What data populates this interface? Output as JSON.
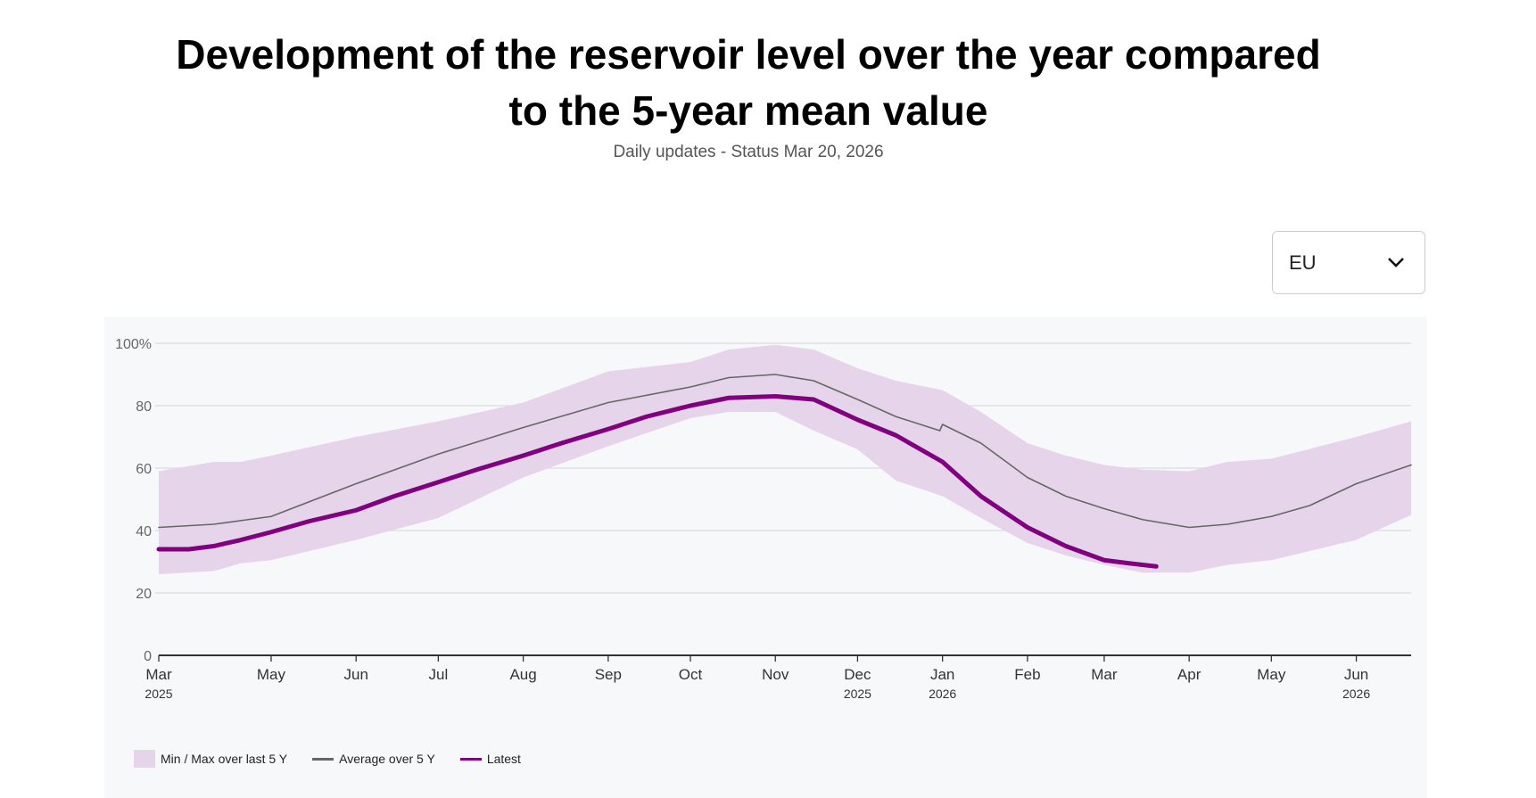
{
  "header": {
    "title_line1": "Development of the reservoir level over the year compared",
    "title_line2": "to the 5-year mean value",
    "subtitle": "Daily updates - Status Mar 20, 2026"
  },
  "region_select": {
    "selected": "EU",
    "icon": "chevron-down-icon"
  },
  "chart_data": {
    "type": "line",
    "title": "",
    "xlabel": "",
    "ylabel": "",
    "xlim": [
      "2025-03-21",
      "2026-06-21"
    ],
    "ylim": [
      0,
      100
    ],
    "yticks": [
      {
        "v": 0,
        "label": "0"
      },
      {
        "v": 20,
        "label": "20"
      },
      {
        "v": 40,
        "label": "40"
      },
      {
        "v": 60,
        "label": "60"
      },
      {
        "v": 80,
        "label": "80"
      },
      {
        "v": 100,
        "label": "100%"
      }
    ],
    "xticks": [
      {
        "date": "2025-03-21",
        "label": "Mar",
        "year": "2025"
      },
      {
        "date": "2025-05-01",
        "label": "May",
        "year": ""
      },
      {
        "date": "2025-06-01",
        "label": "Jun",
        "year": ""
      },
      {
        "date": "2025-07-01",
        "label": "Jul",
        "year": ""
      },
      {
        "date": "2025-08-01",
        "label": "Aug",
        "year": ""
      },
      {
        "date": "2025-09-01",
        "label": "Sep",
        "year": ""
      },
      {
        "date": "2025-10-01",
        "label": "Oct",
        "year": ""
      },
      {
        "date": "2025-11-01",
        "label": "Nov",
        "year": ""
      },
      {
        "date": "2025-12-01",
        "label": "Dec",
        "year": "2025"
      },
      {
        "date": "2026-01-01",
        "label": "Jan",
        "year": "2026"
      },
      {
        "date": "2026-02-01",
        "label": "Feb",
        "year": ""
      },
      {
        "date": "2026-03-01",
        "label": "Mar",
        "year": ""
      },
      {
        "date": "2026-04-01",
        "label": "Apr",
        "year": ""
      },
      {
        "date": "2026-05-01",
        "label": "May",
        "year": ""
      },
      {
        "date": "2026-06-01",
        "label": "Jun",
        "year": "2026"
      }
    ],
    "grid": true,
    "legend_position": "bottom-left",
    "colors": {
      "band": "#e6d5ea",
      "average": "#666666",
      "latest": "#800080",
      "background": "#f7f8fa"
    },
    "band": {
      "name": "Min / Max over last 5 Y",
      "points": [
        [
          "2025-03-21",
          26,
          59
        ],
        [
          "2025-04-10",
          27,
          62
        ],
        [
          "2025-04-20",
          29.5,
          62
        ],
        [
          "2025-05-01",
          30.5,
          64
        ],
        [
          "2025-06-01",
          37,
          70
        ],
        [
          "2025-07-01",
          44,
          75
        ],
        [
          "2025-08-01",
          57,
          81
        ],
        [
          "2025-09-01",
          67,
          91
        ],
        [
          "2025-10-01",
          76,
          94
        ],
        [
          "2025-10-15",
          78,
          98
        ],
        [
          "2025-11-01",
          78,
          99.5
        ],
        [
          "2025-11-15",
          72,
          98
        ],
        [
          "2025-12-01",
          66,
          92
        ],
        [
          "2025-12-15",
          56,
          88
        ],
        [
          "2026-01-01",
          51,
          85
        ],
        [
          "2026-01-15",
          44,
          78
        ],
        [
          "2026-02-01",
          36,
          68
        ],
        [
          "2026-02-15",
          32,
          64
        ],
        [
          "2026-03-01",
          29,
          61
        ],
        [
          "2026-03-15",
          26.5,
          59.5
        ],
        [
          "2026-04-01",
          26.5,
          59
        ],
        [
          "2026-04-15",
          29,
          62
        ],
        [
          "2026-05-01",
          30.5,
          63
        ],
        [
          "2026-06-01",
          37,
          70
        ],
        [
          "2026-06-21",
          45,
          75
        ]
      ]
    },
    "series": [
      {
        "name": "Average over 5 Y",
        "points": [
          [
            "2025-03-21",
            41
          ],
          [
            "2025-04-10",
            42
          ],
          [
            "2025-05-01",
            44.5
          ],
          [
            "2025-06-01",
            55
          ],
          [
            "2025-07-01",
            64.5
          ],
          [
            "2025-08-01",
            73
          ],
          [
            "2025-09-01",
            81
          ],
          [
            "2025-10-01",
            86
          ],
          [
            "2025-10-15",
            89
          ],
          [
            "2025-11-01",
            90
          ],
          [
            "2025-11-15",
            88
          ],
          [
            "2025-12-01",
            82
          ],
          [
            "2025-12-15",
            76.5
          ],
          [
            "2025-12-31",
            72
          ],
          [
            "2026-01-01",
            74
          ],
          [
            "2026-01-15",
            68
          ],
          [
            "2026-02-01",
            57
          ],
          [
            "2026-02-15",
            51
          ],
          [
            "2026-03-01",
            47
          ],
          [
            "2026-03-15",
            43.5
          ],
          [
            "2026-04-01",
            41
          ],
          [
            "2026-04-15",
            42
          ],
          [
            "2026-05-01",
            44.5
          ],
          [
            "2026-05-15",
            48
          ],
          [
            "2026-06-01",
            55
          ],
          [
            "2026-06-21",
            61
          ]
        ]
      },
      {
        "name": "Latest",
        "points": [
          [
            "2025-03-21",
            34
          ],
          [
            "2025-04-01",
            34
          ],
          [
            "2025-04-10",
            35
          ],
          [
            "2025-04-20",
            37
          ],
          [
            "2025-05-01",
            39.5
          ],
          [
            "2025-05-15",
            43
          ],
          [
            "2025-06-01",
            46.5
          ],
          [
            "2025-06-15",
            51
          ],
          [
            "2025-07-01",
            55.5
          ],
          [
            "2025-07-15",
            59.5
          ],
          [
            "2025-08-01",
            64
          ],
          [
            "2025-08-15",
            68
          ],
          [
            "2025-09-01",
            72.5
          ],
          [
            "2025-09-15",
            76.5
          ],
          [
            "2025-10-01",
            80
          ],
          [
            "2025-10-15",
            82.5
          ],
          [
            "2025-11-01",
            83
          ],
          [
            "2025-11-15",
            82
          ],
          [
            "2025-12-01",
            75.5
          ],
          [
            "2025-12-15",
            70.5
          ],
          [
            "2026-01-01",
            62
          ],
          [
            "2026-01-15",
            51
          ],
          [
            "2026-02-01",
            41
          ],
          [
            "2026-02-15",
            35
          ],
          [
            "2026-03-01",
            30.5
          ],
          [
            "2026-03-10",
            29.5
          ],
          [
            "2026-03-20",
            28.5
          ]
        ]
      }
    ]
  },
  "legend": {
    "band": "Min / Max over last 5 Y",
    "average": "Average over 5 Y",
    "latest": "Latest"
  }
}
